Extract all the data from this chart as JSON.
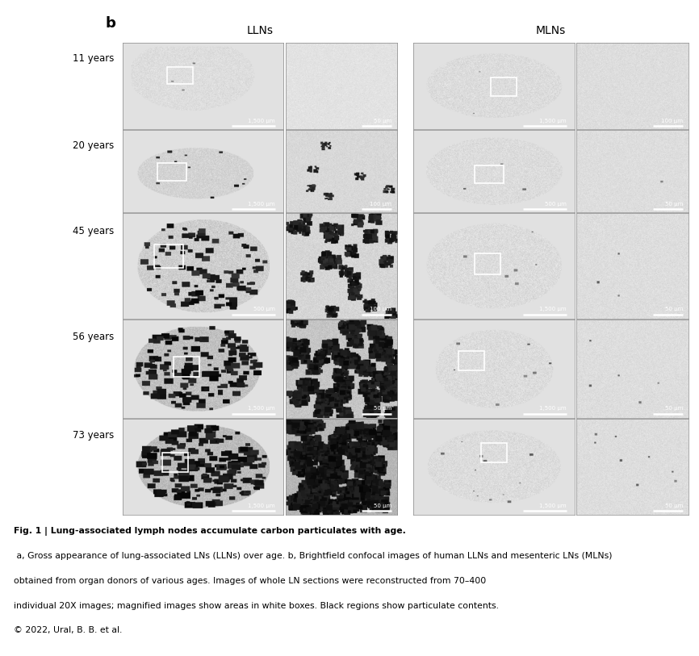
{
  "title_label": "b",
  "col_headers": [
    "LLNs",
    "MLNs"
  ],
  "row_labels": [
    "11 years",
    "20 years",
    "45 years",
    "56 years",
    "73 years"
  ],
  "scale_bars": {
    "LLN_wide": [
      "1,500 μm",
      "1,500 μm",
      "500 μm",
      "1,500 μm",
      "1,500 μm"
    ],
    "LLN_zoom": [
      "50 μm",
      "100 μm",
      "100 μm",
      "50 μm",
      "50 μm"
    ],
    "MLN_wide": [
      "1,500 μm",
      "500 μm",
      "1,500 μm",
      "1,500 μm",
      "1,500 μm"
    ],
    "MLN_zoom": [
      "100 μm",
      "50 μm",
      "50 μm",
      "50 μm",
      "50 μm"
    ]
  },
  "caption_bold_part": "Fig. 1 | Lung-associated lymph nodes accumulate carbon particulates with age.",
  "caption_normal_part": " a, Gross appearance of lung-associated LNs (LLNs) over age. b, Brightfield confocal images of human LLNs and mesenteric LNs (MLNs) obtained from organ donors of various ages. Images of whole LN sections were reconstructed from 70–400 individual 20X images; magnified images show areas in white boxes. Black regions show particulate contents.\n© 2022, Ural, B. B. et al.",
  "bg_color": "#ffffff",
  "text_color": "#000000"
}
